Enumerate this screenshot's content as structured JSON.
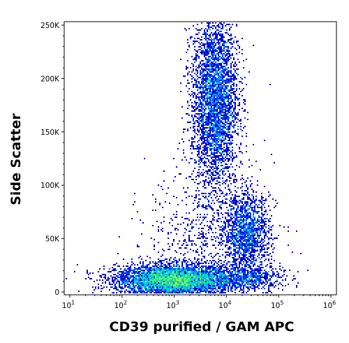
{
  "chart_data": {
    "type": "scatter",
    "xlabel": "CD39 purified / GAM APC",
    "ylabel": "Side Scatter",
    "x_scale": "log",
    "xlim": [
      10,
      1000000
    ],
    "ylim": [
      0,
      260000
    ],
    "x_ticks": [
      {
        "value": 10,
        "base": "10",
        "exp": "1"
      },
      {
        "value": 100,
        "base": "10",
        "exp": "2"
      },
      {
        "value": 1000,
        "base": "10",
        "exp": "3"
      },
      {
        "value": 10000,
        "base": "10",
        "exp": "4"
      },
      {
        "value": 100000,
        "base": "10",
        "exp": "5"
      },
      {
        "value": 1000000,
        "base": "10",
        "exp": "6"
      }
    ],
    "y_ticks": [
      {
        "value": 0,
        "label": "0"
      },
      {
        "value": 50000,
        "label": "50K"
      },
      {
        "value": 100000,
        "label": "100K"
      },
      {
        "value": 150000,
        "label": "150K"
      },
      {
        "value": 200000,
        "label": "200K"
      },
      {
        "value": 250000,
        "label": "250K"
      }
    ],
    "grid": false,
    "colormap": [
      "#0000cc",
      "#0a44ff",
      "#00b4ff",
      "#16e0a0",
      "#8cff3c",
      "#ffff00",
      "#ff8c00",
      "#e60000"
    ],
    "populations": [
      {
        "x_center": 1000,
        "y_center": 11000,
        "x_spread_decades": 0.55,
        "y_spread": 7000,
        "weight": 5200
      },
      {
        "x_center": 6000,
        "y_center": 180000,
        "x_spread_decades": 0.22,
        "y_spread": 42000,
        "weight": 3800
      },
      {
        "x_center": 25000,
        "y_center": 55000,
        "x_spread_decades": 0.22,
        "y_spread": 18000,
        "weight": 1500
      },
      {
        "x_center": 25000,
        "y_center": 13000,
        "x_spread_decades": 0.35,
        "y_spread": 6000,
        "weight": 600
      },
      {
        "x_center": 5000,
        "y_center": 45000,
        "x_spread_decades": 0.6,
        "y_spread": 35000,
        "weight": 900
      }
    ]
  }
}
